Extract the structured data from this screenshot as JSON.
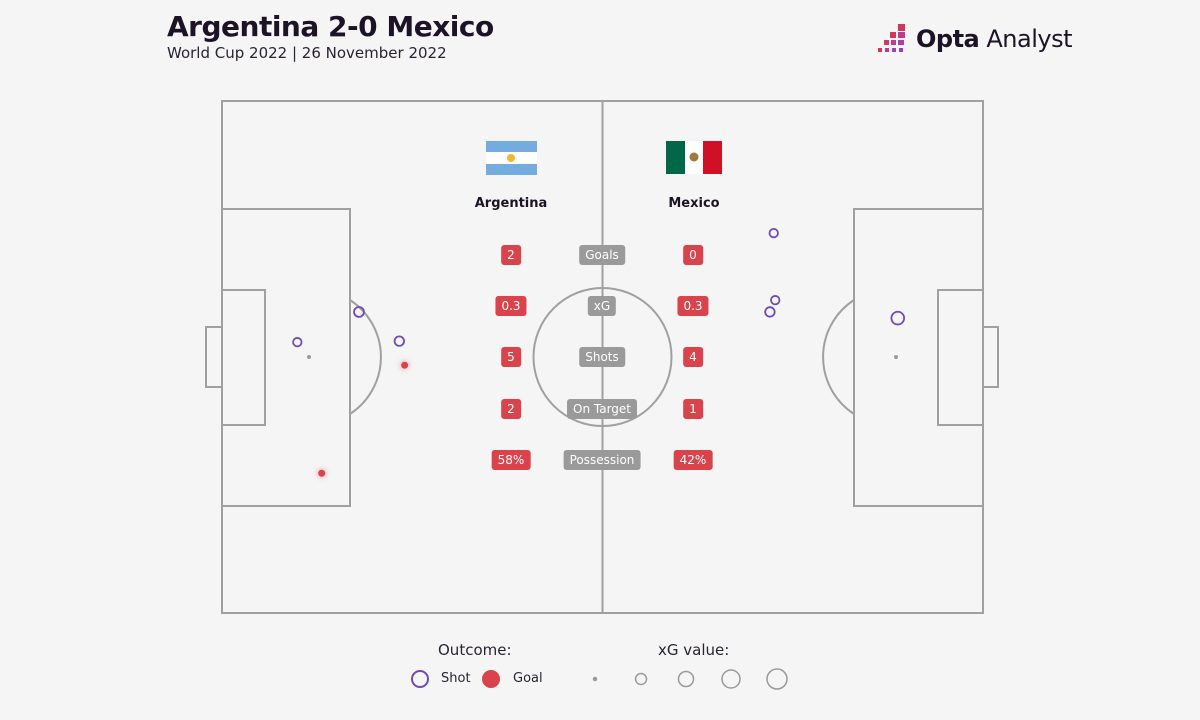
{
  "header": {
    "title": "Argentina 2-0 Mexico",
    "subtitle": "World Cup 2022 | 26 November 2022",
    "logo_bold": "Opta",
    "logo_light": "Analyst"
  },
  "teams": {
    "home": "Argentina",
    "away": "Mexico"
  },
  "stats": [
    {
      "label": "Goals",
      "home": "2",
      "away": "0"
    },
    {
      "label": "xG",
      "home": "0.3",
      "away": "0.3"
    },
    {
      "label": "Shots",
      "home": "5",
      "away": "4"
    },
    {
      "label": "On Target",
      "home": "2",
      "away": "1"
    },
    {
      "label": "Possession",
      "home": "58%",
      "away": "42%"
    }
  ],
  "legend": {
    "outcome_title": "Outcome:",
    "shot": "Shot",
    "goal": "Goal",
    "xg_title": "xG value:"
  },
  "colors": {
    "shot": "#6f4bb8",
    "goal": "#d9434b",
    "pill_value": "#d9434b",
    "pill_label": "#9a9a9a",
    "lines": "#a0a0a0",
    "background": "#f5f5f5"
  },
  "chart_data": {
    "type": "scatter",
    "title": "Argentina 2-0 Mexico",
    "pitch_units": "0-100 length and width",
    "series": [
      {
        "name": "Argentina",
        "attacking": "left",
        "shots": [
          {
            "x": 9.9,
            "y": 47.1,
            "outcome": "Shot",
            "xg": 0.03
          },
          {
            "x": 18.0,
            "y": 41.2,
            "outcome": "Shot",
            "xg": 0.06
          },
          {
            "x": 23.3,
            "y": 46.9,
            "outcome": "Shot",
            "xg": 0.05
          },
          {
            "x": 24.0,
            "y": 51.6,
            "outcome": "Goal",
            "xg": 0.05
          },
          {
            "x": 13.1,
            "y": 72.7,
            "outcome": "Goal",
            "xg": 0.05
          }
        ]
      },
      {
        "name": "Mexico",
        "attacking": "right",
        "shots": [
          {
            "x": 72.5,
            "y": 25.8,
            "outcome": "Shot",
            "xg": 0.03
          },
          {
            "x": 72.7,
            "y": 38.9,
            "outcome": "Shot",
            "xg": 0.03
          },
          {
            "x": 72.0,
            "y": 41.2,
            "outcome": "Shot",
            "xg": 0.05
          },
          {
            "x": 88.8,
            "y": 42.4,
            "outcome": "Shot",
            "xg": 0.15
          }
        ]
      }
    ],
    "legend_xg_sizes": [
      0.01,
      0.1,
      0.2,
      0.3,
      0.4
    ]
  }
}
